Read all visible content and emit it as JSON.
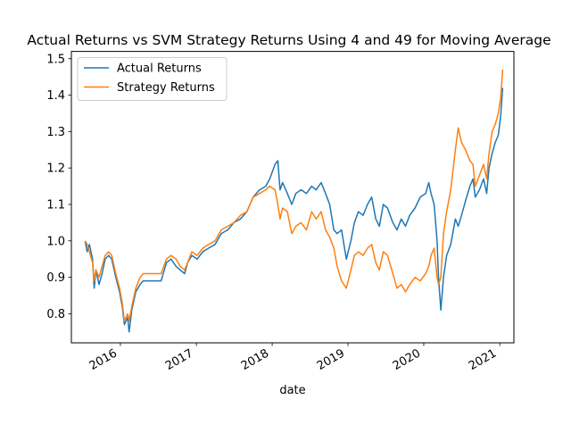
{
  "chart_data": {
    "type": "line",
    "title": "Actual Returns vs SVM Strategy Returns Using 4 and 49 for Moving Average",
    "xlabel": "date",
    "ylabel": "",
    "xlim": [
      "2015-05-10",
      "2021-03-10"
    ],
    "ylim": [
      0.72,
      1.52
    ],
    "x_ticks": [
      "2016",
      "2017",
      "2018",
      "2019",
      "2020",
      "2021"
    ],
    "x_tick_dates": [
      "2016-01-01",
      "2017-01-01",
      "2018-01-01",
      "2019-01-01",
      "2020-01-01",
      "2021-01-01"
    ],
    "y_ticks": [
      "0.8",
      "0.9",
      "1.0",
      "1.1",
      "1.2",
      "1.3",
      "1.4",
      "1.5"
    ],
    "y_tick_values": [
      0.8,
      0.9,
      1.0,
      1.1,
      1.2,
      1.3,
      1.4,
      1.5
    ],
    "grid": false,
    "legend_position": "upper-left",
    "series": [
      {
        "name": "Actual Returns",
        "color": "#1f77b4",
        "points": [
          [
            "2015-07-15",
            1.0
          ],
          [
            "2015-07-25",
            0.97
          ],
          [
            "2015-08-05",
            0.99
          ],
          [
            "2015-08-20",
            0.95
          ],
          [
            "2015-08-28",
            0.87
          ],
          [
            "2015-09-05",
            0.92
          ],
          [
            "2015-09-20",
            0.88
          ],
          [
            "2015-10-05",
            0.91
          ],
          [
            "2015-10-20",
            0.95
          ],
          [
            "2015-11-05",
            0.96
          ],
          [
            "2015-11-20",
            0.95
          ],
          [
            "2015-12-10",
            0.9
          ],
          [
            "2015-12-28",
            0.86
          ],
          [
            "2016-01-10",
            0.82
          ],
          [
            "2016-01-20",
            0.77
          ],
          [
            "2016-02-05",
            0.79
          ],
          [
            "2016-02-12",
            0.75
          ],
          [
            "2016-02-25",
            0.81
          ],
          [
            "2016-03-15",
            0.86
          ],
          [
            "2016-04-05",
            0.88
          ],
          [
            "2016-04-20",
            0.89
          ],
          [
            "2016-07-15",
            0.89
          ],
          [
            "2016-08-10",
            0.94
          ],
          [
            "2016-09-01",
            0.95
          ],
          [
            "2016-09-25",
            0.93
          ],
          [
            "2016-10-15",
            0.92
          ],
          [
            "2016-11-05",
            0.91
          ],
          [
            "2016-11-20",
            0.94
          ],
          [
            "2016-12-10",
            0.96
          ],
          [
            "2017-01-05",
            0.95
          ],
          [
            "2017-02-01",
            0.97
          ],
          [
            "2017-03-01",
            0.98
          ],
          [
            "2017-04-01",
            0.99
          ],
          [
            "2017-05-01",
            1.02
          ],
          [
            "2017-06-01",
            1.03
          ],
          [
            "2017-07-01",
            1.05
          ],
          [
            "2017-08-01",
            1.06
          ],
          [
            "2017-09-01",
            1.08
          ],
          [
            "2017-10-01",
            1.12
          ],
          [
            "2017-11-01",
            1.14
          ],
          [
            "2017-12-01",
            1.15
          ],
          [
            "2017-12-20",
            1.17
          ],
          [
            "2018-01-15",
            1.21
          ],
          [
            "2018-01-28",
            1.22
          ],
          [
            "2018-02-08",
            1.14
          ],
          [
            "2018-02-20",
            1.16
          ],
          [
            "2018-03-15",
            1.13
          ],
          [
            "2018-04-05",
            1.1
          ],
          [
            "2018-04-25",
            1.13
          ],
          [
            "2018-05-20",
            1.14
          ],
          [
            "2018-06-15",
            1.13
          ],
          [
            "2018-07-10",
            1.15
          ],
          [
            "2018-08-01",
            1.14
          ],
          [
            "2018-08-25",
            1.16
          ],
          [
            "2018-09-15",
            1.13
          ],
          [
            "2018-10-05",
            1.1
          ],
          [
            "2018-10-25",
            1.03
          ],
          [
            "2018-11-10",
            1.02
          ],
          [
            "2018-12-01",
            1.03
          ],
          [
            "2018-12-24",
            0.95
          ],
          [
            "2019-01-15",
            1.0
          ],
          [
            "2019-02-01",
            1.05
          ],
          [
            "2019-02-20",
            1.08
          ],
          [
            "2019-03-15",
            1.07
          ],
          [
            "2019-04-05",
            1.1
          ],
          [
            "2019-04-25",
            1.12
          ],
          [
            "2019-05-15",
            1.06
          ],
          [
            "2019-06-01",
            1.04
          ],
          [
            "2019-06-20",
            1.1
          ],
          [
            "2019-07-10",
            1.09
          ],
          [
            "2019-08-05",
            1.05
          ],
          [
            "2019-08-25",
            1.03
          ],
          [
            "2019-09-15",
            1.06
          ],
          [
            "2019-10-05",
            1.04
          ],
          [
            "2019-10-25",
            1.07
          ],
          [
            "2019-11-20",
            1.09
          ],
          [
            "2019-12-15",
            1.12
          ],
          [
            "2020-01-10",
            1.13
          ],
          [
            "2020-01-25",
            1.16
          ],
          [
            "2020-02-05",
            1.13
          ],
          [
            "2020-02-20",
            1.1
          ],
          [
            "2020-03-05",
            1.0
          ],
          [
            "2020-03-12",
            0.9
          ],
          [
            "2020-03-23",
            0.81
          ],
          [
            "2020-04-05",
            0.9
          ],
          [
            "2020-04-20",
            0.96
          ],
          [
            "2020-05-10",
            0.99
          ],
          [
            "2020-06-01",
            1.06
          ],
          [
            "2020-06-15",
            1.04
          ],
          [
            "2020-07-01",
            1.07
          ],
          [
            "2020-07-20",
            1.11
          ],
          [
            "2020-08-10",
            1.15
          ],
          [
            "2020-08-25",
            1.17
          ],
          [
            "2020-09-05",
            1.12
          ],
          [
            "2020-09-25",
            1.14
          ],
          [
            "2020-10-15",
            1.17
          ],
          [
            "2020-10-30",
            1.13
          ],
          [
            "2020-11-10",
            1.2
          ],
          [
            "2020-11-25",
            1.24
          ],
          [
            "2020-12-10",
            1.27
          ],
          [
            "2020-12-25",
            1.29
          ],
          [
            "2021-01-05",
            1.34
          ],
          [
            "2021-01-15",
            1.42
          ]
        ]
      },
      {
        "name": "Strategy Returns",
        "color": "#ff7f0e",
        "points": [
          [
            "2015-07-15",
            1.0
          ],
          [
            "2015-07-25",
            0.99
          ],
          [
            "2015-08-05",
            0.97
          ],
          [
            "2015-08-20",
            0.94
          ],
          [
            "2015-08-28",
            0.89
          ],
          [
            "2015-09-05",
            0.92
          ],
          [
            "2015-09-20",
            0.9
          ],
          [
            "2015-10-05",
            0.93
          ],
          [
            "2015-10-20",
            0.96
          ],
          [
            "2015-11-05",
            0.97
          ],
          [
            "2015-11-20",
            0.96
          ],
          [
            "2015-12-10",
            0.91
          ],
          [
            "2015-12-28",
            0.87
          ],
          [
            "2016-01-10",
            0.83
          ],
          [
            "2016-01-20",
            0.78
          ],
          [
            "2016-02-05",
            0.8
          ],
          [
            "2016-02-12",
            0.78
          ],
          [
            "2016-02-25",
            0.82
          ],
          [
            "2016-03-15",
            0.87
          ],
          [
            "2016-04-05",
            0.9
          ],
          [
            "2016-04-20",
            0.91
          ],
          [
            "2016-07-15",
            0.91
          ],
          [
            "2016-08-10",
            0.95
          ],
          [
            "2016-09-01",
            0.96
          ],
          [
            "2016-09-25",
            0.95
          ],
          [
            "2016-10-15",
            0.93
          ],
          [
            "2016-11-05",
            0.92
          ],
          [
            "2016-11-20",
            0.94
          ],
          [
            "2016-12-10",
            0.97
          ],
          [
            "2017-01-05",
            0.96
          ],
          [
            "2017-02-01",
            0.98
          ],
          [
            "2017-03-01",
            0.99
          ],
          [
            "2017-04-01",
            1.0
          ],
          [
            "2017-05-01",
            1.03
          ],
          [
            "2017-06-01",
            1.04
          ],
          [
            "2017-07-01",
            1.05
          ],
          [
            "2017-08-01",
            1.07
          ],
          [
            "2017-09-01",
            1.08
          ],
          [
            "2017-10-01",
            1.12
          ],
          [
            "2017-11-01",
            1.13
          ],
          [
            "2017-12-01",
            1.14
          ],
          [
            "2017-12-20",
            1.15
          ],
          [
            "2018-01-15",
            1.14
          ],
          [
            "2018-01-28",
            1.1
          ],
          [
            "2018-02-08",
            1.06
          ],
          [
            "2018-02-20",
            1.09
          ],
          [
            "2018-03-15",
            1.08
          ],
          [
            "2018-04-05",
            1.02
          ],
          [
            "2018-04-25",
            1.04
          ],
          [
            "2018-05-20",
            1.05
          ],
          [
            "2018-06-15",
            1.03
          ],
          [
            "2018-07-10",
            1.08
          ],
          [
            "2018-08-01",
            1.06
          ],
          [
            "2018-08-25",
            1.08
          ],
          [
            "2018-09-15",
            1.03
          ],
          [
            "2018-10-05",
            1.01
          ],
          [
            "2018-10-25",
            0.98
          ],
          [
            "2018-11-10",
            0.93
          ],
          [
            "2018-12-01",
            0.89
          ],
          [
            "2018-12-24",
            0.87
          ],
          [
            "2019-01-15",
            0.92
          ],
          [
            "2019-02-01",
            0.96
          ],
          [
            "2019-02-20",
            0.97
          ],
          [
            "2019-03-15",
            0.96
          ],
          [
            "2019-04-05",
            0.98
          ],
          [
            "2019-04-25",
            0.99
          ],
          [
            "2019-05-15",
            0.94
          ],
          [
            "2019-06-01",
            0.92
          ],
          [
            "2019-06-20",
            0.97
          ],
          [
            "2019-07-10",
            0.96
          ],
          [
            "2019-08-05",
            0.91
          ],
          [
            "2019-08-25",
            0.87
          ],
          [
            "2019-09-15",
            0.88
          ],
          [
            "2019-10-05",
            0.86
          ],
          [
            "2019-10-25",
            0.88
          ],
          [
            "2019-11-20",
            0.9
          ],
          [
            "2019-12-15",
            0.89
          ],
          [
            "2020-01-10",
            0.91
          ],
          [
            "2020-01-25",
            0.93
          ],
          [
            "2020-02-05",
            0.96
          ],
          [
            "2020-02-20",
            0.98
          ],
          [
            "2020-03-05",
            0.9
          ],
          [
            "2020-03-12",
            0.88
          ],
          [
            "2020-03-23",
            0.9
          ],
          [
            "2020-04-05",
            1.02
          ],
          [
            "2020-04-20",
            1.08
          ],
          [
            "2020-05-10",
            1.14
          ],
          [
            "2020-06-01",
            1.25
          ],
          [
            "2020-06-15",
            1.31
          ],
          [
            "2020-07-01",
            1.27
          ],
          [
            "2020-07-20",
            1.25
          ],
          [
            "2020-08-10",
            1.22
          ],
          [
            "2020-08-25",
            1.21
          ],
          [
            "2020-09-05",
            1.15
          ],
          [
            "2020-09-25",
            1.18
          ],
          [
            "2020-10-15",
            1.21
          ],
          [
            "2020-10-30",
            1.17
          ],
          [
            "2020-11-10",
            1.24
          ],
          [
            "2020-11-25",
            1.3
          ],
          [
            "2020-12-10",
            1.32
          ],
          [
            "2020-12-25",
            1.35
          ],
          [
            "2021-01-05",
            1.39
          ],
          [
            "2021-01-15",
            1.47
          ]
        ]
      }
    ]
  }
}
